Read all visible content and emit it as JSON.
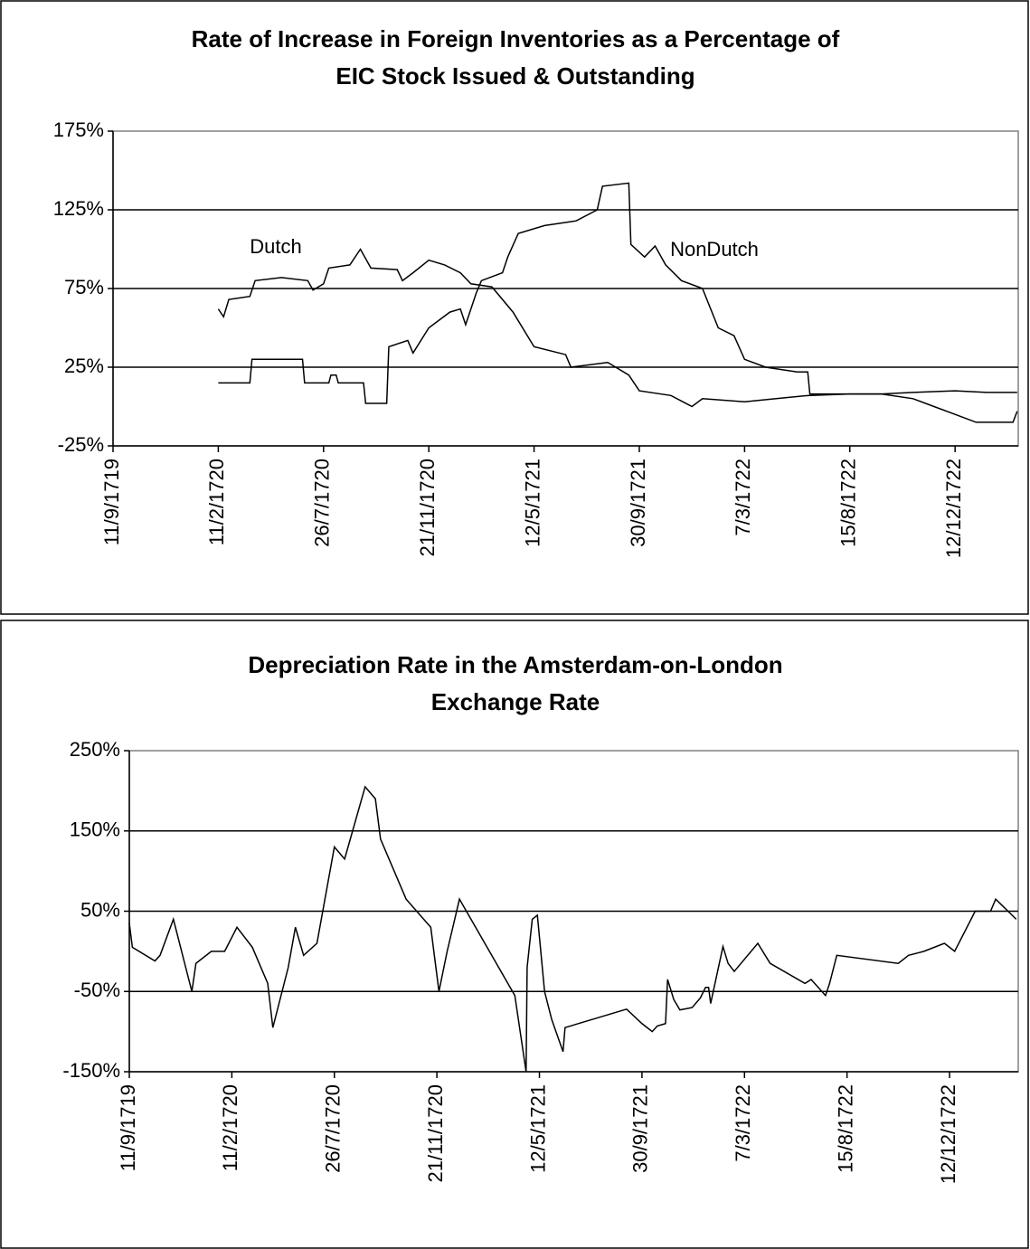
{
  "chart_data": [
    {
      "type": "line",
      "title": [
        "Rate of Increase in Foreign Inventories as a Percentage of",
        "EIC Stock Issued & Outstanding"
      ],
      "xlim": [
        0,
        8.6
      ],
      "xticks": [
        {
          "value": 0,
          "label": "11/9/1719"
        },
        {
          "value": 1,
          "label": "11/2/1720"
        },
        {
          "value": 2,
          "label": "26/7/1720"
        },
        {
          "value": 3,
          "label": "21/11/1720"
        },
        {
          "value": 4,
          "label": "12/5/1721"
        },
        {
          "value": 5,
          "label": "30/9/1721"
        },
        {
          "value": 6,
          "label": "7/3/1722"
        },
        {
          "value": 7,
          "label": "15/8/1722"
        },
        {
          "value": 8,
          "label": "12/12/1722"
        }
      ],
      "ylim": [
        -25,
        175
      ],
      "yticks": [
        {
          "value": -25,
          "label": "-25%"
        },
        {
          "value": 25,
          "label": "25%"
        },
        {
          "value": 75,
          "label": "75%"
        },
        {
          "value": 125,
          "label": "125%"
        },
        {
          "value": 175,
          "label": "175%"
        }
      ],
      "grid": true,
      "series": [
        {
          "name": "Dutch",
          "color": "#000000",
          "x": [
            1.0,
            1.05,
            1.1,
            1.3,
            1.35,
            1.6,
            1.85,
            1.9,
            2.0,
            2.05,
            2.25,
            2.35,
            2.45,
            2.7,
            2.75,
            2.85,
            3.0,
            3.15,
            3.3,
            3.4,
            3.6,
            3.8,
            4.0,
            4.3,
            4.35,
            4.7,
            4.9,
            5.0,
            5.3,
            5.5,
            5.6,
            6.0,
            6.3,
            6.6,
            7.0,
            7.3,
            7.6,
            8.0,
            8.3,
            8.59
          ],
          "values": [
            62,
            57,
            68,
            70,
            80,
            82,
            80,
            74,
            78,
            88,
            90,
            100,
            88,
            87,
            80,
            85,
            93,
            90,
            85,
            78,
            76,
            60,
            38,
            33,
            25,
            28,
            20,
            10,
            7,
            0,
            5,
            3,
            5,
            7,
            8,
            8,
            9,
            10,
            9,
            9
          ]
        },
        {
          "name": "NonDutch",
          "color": "#000000",
          "x": [
            1.0,
            1.3,
            1.32,
            1.8,
            1.82,
            2.05,
            2.07,
            2.12,
            2.14,
            2.38,
            2.4,
            2.6,
            2.62,
            2.8,
            2.85,
            3.0,
            3.2,
            3.3,
            3.35,
            3.45,
            3.5,
            3.7,
            3.75,
            3.85,
            4.1,
            4.4,
            4.6,
            4.65,
            4.9,
            4.92,
            5.05,
            5.15,
            5.25,
            5.4,
            5.6,
            5.75,
            5.9,
            6.0,
            6.2,
            6.5,
            6.6,
            6.62,
            7.3,
            7.6,
            7.8,
            8.0,
            8.2,
            8.55,
            8.59
          ],
          "values": [
            15,
            15,
            30,
            30,
            15,
            15,
            20,
            20,
            15,
            15,
            2,
            2,
            38,
            42,
            34,
            50,
            60,
            62,
            52,
            72,
            80,
            85,
            95,
            110,
            115,
            118,
            125,
            140,
            142,
            103,
            95,
            102,
            90,
            80,
            75,
            50,
            45,
            30,
            25,
            22,
            22,
            8,
            8,
            5,
            0,
            -5,
            -10,
            -10,
            -3
          ]
        }
      ]
    },
    {
      "type": "line",
      "title": [
        "Depreciation Rate in the Amsterdam-on-London",
        "Exchange Rate"
      ],
      "xlim": [
        0,
        8.67
      ],
      "xticks": [
        {
          "value": 0,
          "label": "11/9/1719"
        },
        {
          "value": 1,
          "label": "11/2/1720"
        },
        {
          "value": 2,
          "label": "26/7/1720"
        },
        {
          "value": 3,
          "label": "21/11/1720"
        },
        {
          "value": 4,
          "label": "12/5/1721"
        },
        {
          "value": 5,
          "label": "30/9/1721"
        },
        {
          "value": 6,
          "label": "7/3/1722"
        },
        {
          "value": 7,
          "label": "15/8/1722"
        },
        {
          "value": 8,
          "label": "12/12/1722"
        }
      ],
      "ylim": [
        -150,
        250
      ],
      "yticks": [
        {
          "value": -150,
          "label": "-150%"
        },
        {
          "value": -50,
          "label": "-50%"
        },
        {
          "value": 50,
          "label": "50%"
        },
        {
          "value": 150,
          "label": "150%"
        },
        {
          "value": 250,
          "label": "250%"
        }
      ],
      "grid": true,
      "color": "#000000",
      "x": [
        0.0,
        0.03,
        0.25,
        0.3,
        0.43,
        0.61,
        0.65,
        0.8,
        0.93,
        1.05,
        1.2,
        1.35,
        1.4,
        1.55,
        1.62,
        1.7,
        1.83,
        2.0,
        2.1,
        2.3,
        2.4,
        2.45,
        2.7,
        2.94,
        3.02,
        3.1,
        3.22,
        3.76,
        3.87,
        3.88,
        3.93,
        3.98,
        4.05,
        4.12,
        4.23,
        4.25,
        4.85,
        5.0,
        5.1,
        5.15,
        5.23,
        5.25,
        5.31,
        5.37,
        5.49,
        5.57,
        5.62,
        5.65,
        5.67,
        5.79,
        5.84,
        5.9,
        6.13,
        6.25,
        6.59,
        6.65,
        6.79,
        6.83,
        6.9,
        7.5,
        7.6,
        7.75,
        7.95,
        8.05,
        8.25,
        8.4,
        8.45,
        8.65
      ],
      "values": [
        35,
        5,
        -12,
        -5,
        40,
        -50,
        -15,
        0,
        0,
        30,
        5,
        -40,
        -95,
        -20,
        30,
        -5,
        10,
        130,
        115,
        205,
        190,
        140,
        65,
        30,
        -50,
        0,
        65,
        -55,
        -150,
        -20,
        40,
        45,
        -50,
        -85,
        -125,
        -95,
        -72,
        -90,
        -100,
        -93,
        -90,
        -35,
        -60,
        -73,
        -70,
        -58,
        -45,
        -45,
        -65,
        6,
        -15,
        -25,
        10,
        -15,
        -40,
        -35,
        -55,
        -40,
        -5,
        -15,
        -5,
        0,
        10,
        0,
        50,
        50,
        65,
        40
      ]
    }
  ]
}
